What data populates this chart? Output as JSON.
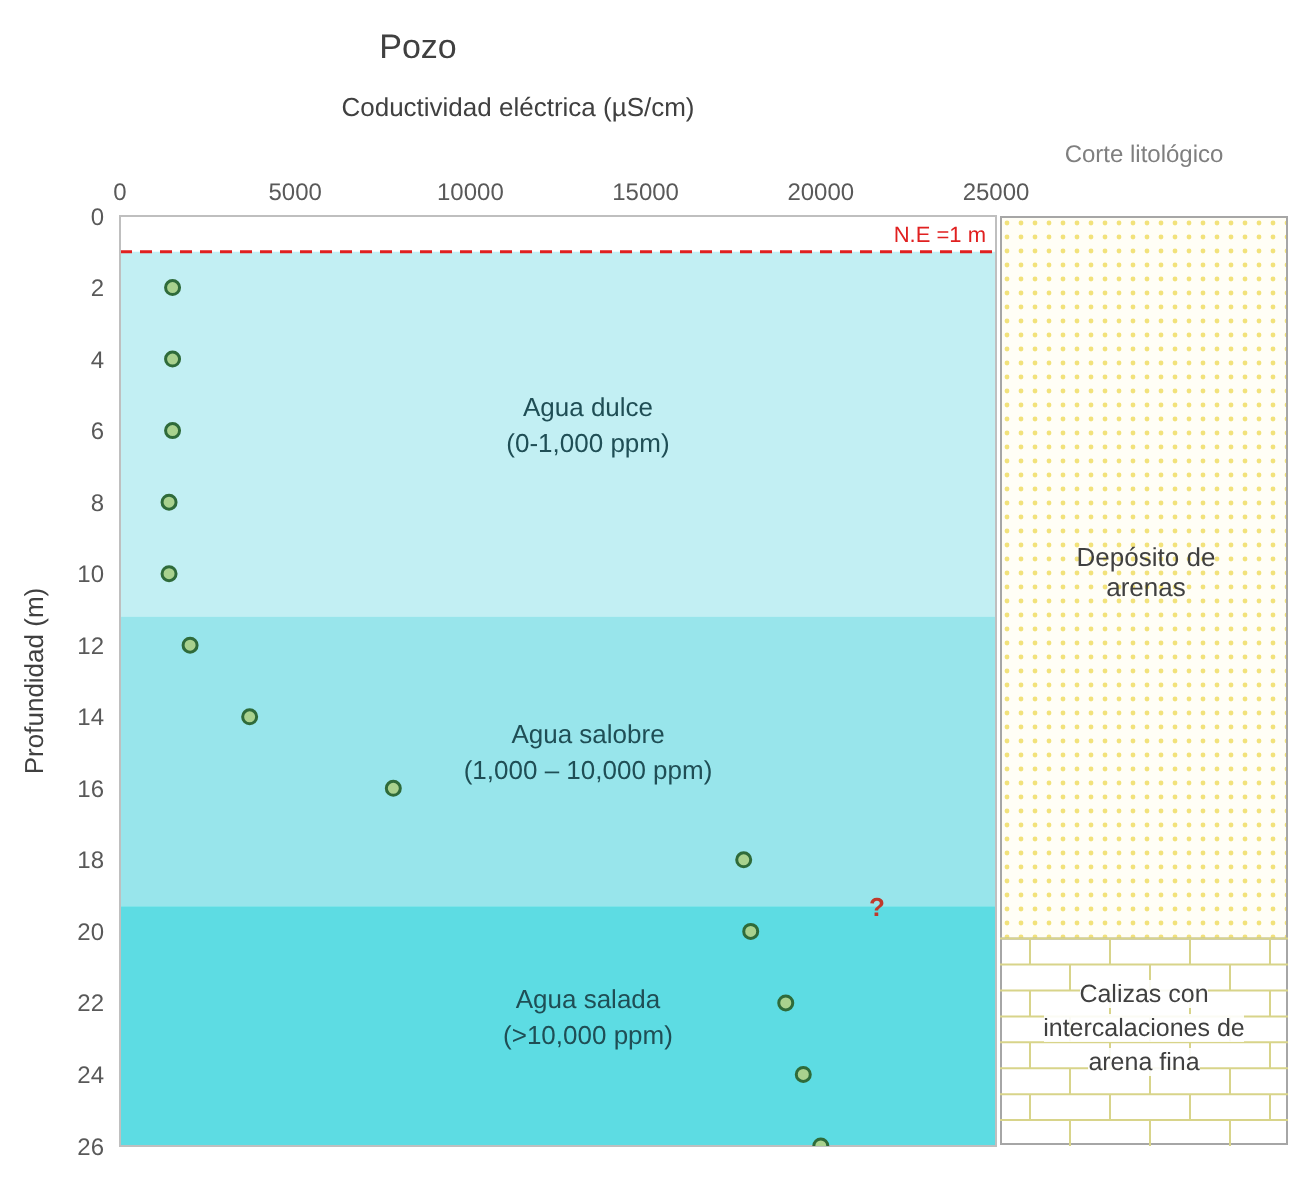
{
  "chart_data": {
    "type": "scatter",
    "title": "Pozo",
    "xlabel": "Coductividad eléctrica (µS/cm)",
    "ylabel": "Profundidad (m)",
    "series": [
      {
        "color": "#a9d18e",
        "x": [
          1500,
          1500,
          1500,
          1400,
          1400,
          2000,
          3700,
          7800,
          17800,
          18000,
          19000,
          19500,
          20000
        ],
        "values": [
          2,
          4,
          6,
          8,
          10,
          12,
          14,
          16,
          18,
          20,
          22,
          24,
          26
        ]
      }
    ],
    "xlim": [
      0,
      25000
    ],
    "xticks": [
      0,
      5000,
      10000,
      15000,
      20000,
      25000
    ],
    "ylim": [
      26,
      0
    ],
    "yticks": [
      0,
      2,
      4,
      6,
      8,
      10,
      12,
      14,
      16,
      18,
      20,
      22,
      24,
      26
    ],
    "marker": "circle",
    "grid": false,
    "legend": false,
    "ref_lines": [
      {
        "axis": "y",
        "value": 1,
        "label": "N.E =1 m",
        "color": "#e02020",
        "line_style": "dashed"
      }
    ],
    "bands": [
      {
        "axis": "y",
        "from": 1,
        "to": 11.2,
        "label": "Agua dulce\n(0-1,000 ppm)",
        "color": "#c2eff3"
      },
      {
        "axis": "y",
        "from": 11.2,
        "to": 19.3,
        "label": "Agua salobre\n(1,000 – 10,000 ppm)",
        "color": "#98e5eb"
      },
      {
        "axis": "y",
        "from": 19.3,
        "to": 26,
        "label": "Agua salada\n(>10,000 ppm)",
        "color": "#5ddce3"
      }
    ],
    "annotations": [
      "Corte litológico",
      "Depósito de arenas",
      "Calizas con intercalaciones de arena fina",
      {
        "text": "?",
        "x": 21600,
        "y": 19.3
      }
    ]
  }
}
